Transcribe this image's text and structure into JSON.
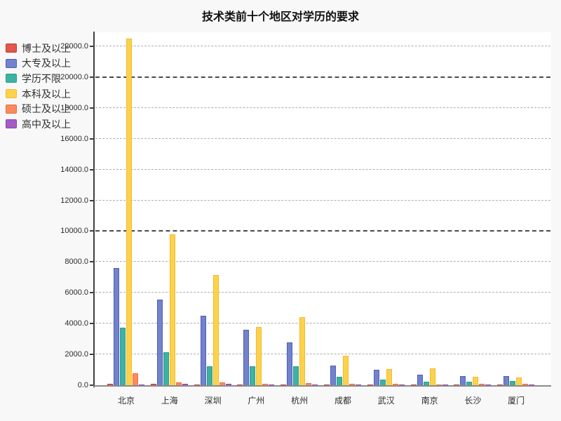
{
  "title": "技术类前十个地区对学历的要求",
  "colors": {
    "page_background": "#f8f8f8",
    "plot_background": "#ffffff",
    "y_axis_line": "#3f3f3f",
    "x_axis_line": "#8a8a8a",
    "gridline_minor": "#aeaeae",
    "gridline_major": "#4a4a4a",
    "text": "#2b2b2b"
  },
  "chart_data": {
    "type": "bar",
    "title": "技术类前十个地区对学历的要求",
    "xlabel": "",
    "ylabel": "",
    "grid": "dashed",
    "legend_position": "top-left",
    "categories": [
      "北京",
      "上海",
      "深圳",
      "广州",
      "杭州",
      "成都",
      "武汉",
      "南京",
      "长沙",
      "厦门"
    ],
    "series": [
      {
        "name": "博士及以上",
        "color": "#e2574e",
        "border": "#c13b34",
        "values": [
          100,
          70,
          60,
          50,
          40,
          30,
          50,
          40,
          30,
          25
        ]
      },
      {
        "name": "大专及以上",
        "color": "#7282cc",
        "border": "#4f5fb9",
        "values": [
          7620,
          5550,
          4520,
          3620,
          2800,
          1290,
          1000,
          680,
          600,
          590
        ]
      },
      {
        "name": "学历不限",
        "color": "#3db2a2",
        "border": "#2b9b8c",
        "values": [
          3730,
          2130,
          1240,
          1250,
          1210,
          560,
          350,
          250,
          250,
          290
        ]
      },
      {
        "name": "本科及以上",
        "color": "#fdd24b",
        "border": "#f0bb33",
        "values": [
          22500,
          9790,
          7160,
          3790,
          4430,
          1910,
          1040,
          1110,
          550,
          490
        ]
      },
      {
        "name": "硕士及以上",
        "color": "#fb8a5c",
        "border": "#ed6d3d",
        "values": [
          770,
          200,
          200,
          90,
          120,
          90,
          90,
          50,
          80,
          70
        ]
      },
      {
        "name": "高中及以上",
        "color": "#a55bc6",
        "border": "#8c3fb1",
        "values": [
          50,
          80,
          90,
          30,
          30,
          20,
          20,
          15,
          10,
          10
        ]
      }
    ],
    "y_axis": {
      "min": 0,
      "max": 22000,
      "step": 2000,
      "major_every": 10000,
      "tick_labels": [
        "0.0",
        "2000.0",
        "4000.0",
        "6000.0",
        "8000.0",
        "10000.0",
        "12000.0",
        "14000.0",
        "16000.0",
        "18000.0",
        "20000.0",
        "22000.0"
      ]
    }
  }
}
